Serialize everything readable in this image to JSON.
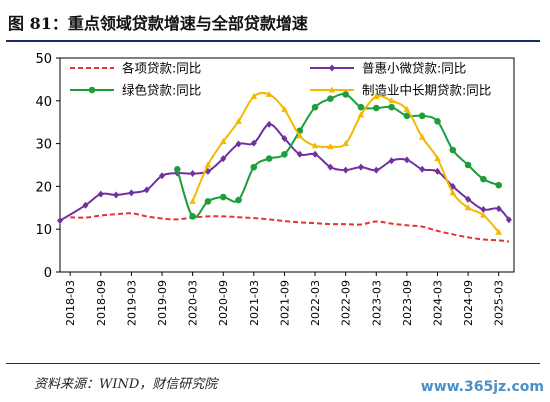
{
  "title": "图 81：重点领域贷款增速与全部贷款增速",
  "source": "资料来源：WIND，财信研究院",
  "watermark": "www.365jz.com",
  "colors": {
    "title_rule": "#1a2a6c"
  },
  "chart_data": {
    "type": "line",
    "title": "",
    "xlabel": "",
    "ylabel": "",
    "ylim": [
      0,
      50
    ],
    "yticks": [
      0,
      10,
      20,
      30,
      40,
      50
    ],
    "xlim": [
      "2018-01",
      "2025-06"
    ],
    "xticks": [
      "2018-03",
      "2018-09",
      "2019-03",
      "2019-09",
      "2020-03",
      "2020-09",
      "2021-03",
      "2021-09",
      "2022-03",
      "2022-09",
      "2023-03",
      "2023-09",
      "2024-03",
      "2024-09",
      "2025-03"
    ],
    "grid": false,
    "legend_position": "top",
    "series": [
      {
        "name": "各项贷款:同比",
        "color": "#e8322c",
        "style": "dashed",
        "marker": "none",
        "points": [
          [
            "2018-03",
            12.8
          ],
          [
            "2018-06",
            12.7
          ],
          [
            "2018-09",
            13.2
          ],
          [
            "2018-12",
            13.5
          ],
          [
            "2019-03",
            13.7
          ],
          [
            "2019-06",
            13.0
          ],
          [
            "2019-09",
            12.5
          ],
          [
            "2019-12",
            12.3
          ],
          [
            "2020-03",
            12.7
          ],
          [
            "2020-06",
            13.0
          ],
          [
            "2020-09",
            13.0
          ],
          [
            "2020-12",
            12.8
          ],
          [
            "2021-03",
            12.6
          ],
          [
            "2021-06",
            12.3
          ],
          [
            "2021-09",
            11.9
          ],
          [
            "2021-12",
            11.6
          ],
          [
            "2022-03",
            11.4
          ],
          [
            "2022-06",
            11.2
          ],
          [
            "2022-09",
            11.2
          ],
          [
            "2022-12",
            11.1
          ],
          [
            "2023-03",
            11.8
          ],
          [
            "2023-06",
            11.3
          ],
          [
            "2023-09",
            10.9
          ],
          [
            "2023-12",
            10.6
          ],
          [
            "2024-03",
            9.6
          ],
          [
            "2024-06",
            8.8
          ],
          [
            "2024-09",
            8.1
          ],
          [
            "2024-12",
            7.6
          ],
          [
            "2025-03",
            7.4
          ],
          [
            "2025-05",
            7.1
          ]
        ]
      },
      {
        "name": "普惠小微贷款:同比",
        "color": "#7030a0",
        "style": "solid",
        "marker": "diamond",
        "points": [
          [
            "2018-01",
            12.0
          ],
          [
            "2018-06",
            15.6
          ],
          [
            "2018-09",
            18.2
          ],
          [
            "2018-12",
            18.0
          ],
          [
            "2019-03",
            18.5
          ],
          [
            "2019-06",
            19.2
          ],
          [
            "2019-09",
            22.5
          ],
          [
            "2019-12",
            23.1
          ],
          [
            "2020-03",
            23.0
          ],
          [
            "2020-06",
            23.5
          ],
          [
            "2020-09",
            26.5
          ],
          [
            "2020-12",
            29.9
          ],
          [
            "2021-03",
            30.1
          ],
          [
            "2021-06",
            34.5
          ],
          [
            "2021-09",
            31.2
          ],
          [
            "2021-12",
            27.5
          ],
          [
            "2022-03",
            27.5
          ],
          [
            "2022-06",
            24.5
          ],
          [
            "2022-09",
            23.8
          ],
          [
            "2022-12",
            24.5
          ],
          [
            "2023-03",
            23.8
          ],
          [
            "2023-06",
            26.0
          ],
          [
            "2023-09",
            26.2
          ],
          [
            "2023-12",
            24.0
          ],
          [
            "2024-03",
            23.5
          ],
          [
            "2024-06",
            20.0
          ],
          [
            "2024-09",
            17.0
          ],
          [
            "2024-12",
            14.6
          ],
          [
            "2025-03",
            14.8
          ],
          [
            "2025-05",
            12.2
          ]
        ]
      },
      {
        "name": "绿色贷款:同比",
        "color": "#1d9e3a",
        "style": "solid",
        "marker": "circle",
        "points": [
          [
            "2019-12",
            24.0
          ],
          [
            "2020-03",
            13.0
          ],
          [
            "2020-06",
            16.5
          ],
          [
            "2020-09",
            17.5
          ],
          [
            "2020-12",
            16.8
          ],
          [
            "2021-03",
            24.5
          ],
          [
            "2021-06",
            26.5
          ],
          [
            "2021-09",
            27.5
          ],
          [
            "2021-12",
            33.0
          ],
          [
            "2022-03",
            38.5
          ],
          [
            "2022-06",
            40.5
          ],
          [
            "2022-09",
            41.5
          ],
          [
            "2022-12",
            38.5
          ],
          [
            "2023-03",
            38.3
          ],
          [
            "2023-06",
            38.5
          ],
          [
            "2023-09",
            36.5
          ],
          [
            "2023-12",
            36.5
          ],
          [
            "2024-03",
            35.2
          ],
          [
            "2024-06",
            28.5
          ],
          [
            "2024-09",
            25.0
          ],
          [
            "2024-12",
            21.7
          ],
          [
            "2025-03",
            20.3
          ]
        ]
      },
      {
        "name": "制造业中长期贷款:同比",
        "color": "#f5b800",
        "style": "solid",
        "marker": "triangle",
        "points": [
          [
            "2020-03",
            16.5
          ],
          [
            "2020-06",
            25.0
          ],
          [
            "2020-09",
            30.5
          ],
          [
            "2020-12",
            35.2
          ],
          [
            "2021-03",
            41.0
          ],
          [
            "2021-06",
            41.5
          ],
          [
            "2021-09",
            38.0
          ],
          [
            "2021-12",
            31.8
          ],
          [
            "2022-03",
            29.5
          ],
          [
            "2022-06",
            29.3
          ],
          [
            "2022-09",
            30.0
          ],
          [
            "2022-12",
            36.7
          ],
          [
            "2023-03",
            41.0
          ],
          [
            "2023-06",
            40.0
          ],
          [
            "2023-09",
            38.0
          ],
          [
            "2023-12",
            31.5
          ],
          [
            "2024-03",
            26.5
          ],
          [
            "2024-06",
            18.5
          ],
          [
            "2024-09",
            15.0
          ],
          [
            "2024-12",
            13.3
          ],
          [
            "2025-03",
            9.3
          ]
        ]
      }
    ]
  }
}
